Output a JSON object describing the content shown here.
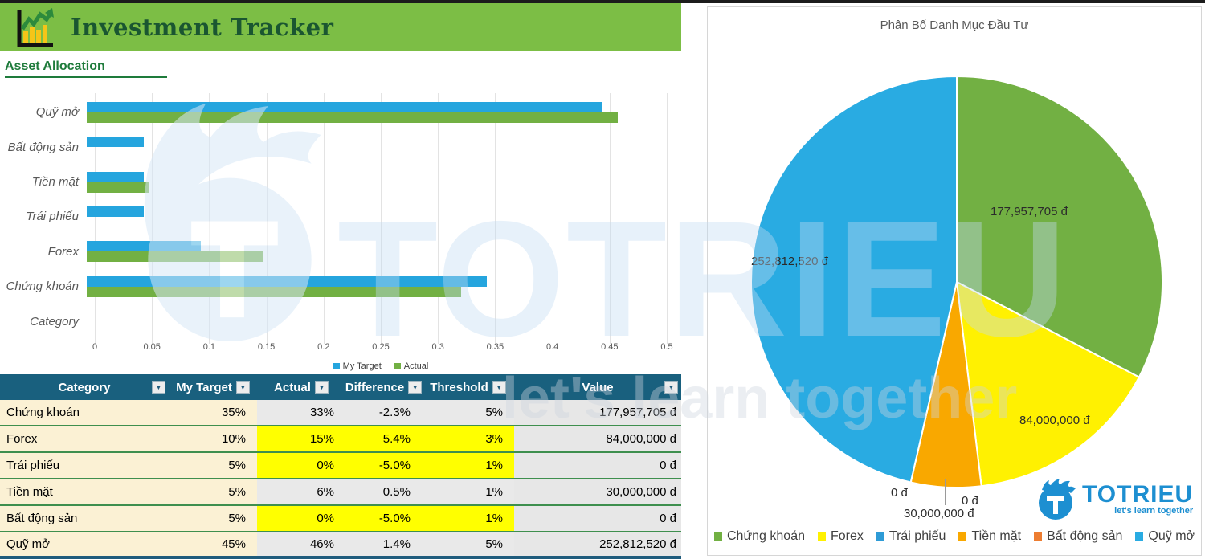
{
  "header": {
    "title": "Investment Tracker"
  },
  "section": {
    "title": "Asset Allocation"
  },
  "colors": {
    "banner_green": "#7CBE45",
    "title_green": "#1A5631",
    "section_green": "#1E7B3B",
    "target_blue": "#25A5DE",
    "actual_green": "#72B043",
    "table_header_bg": "#19607E",
    "row_beige": "#FBF1D4",
    "row_gray": "#E9E9E9",
    "highlight_yellow": "#FFFF00",
    "separator_green": "#3E8F4E",
    "bottom_border_blue": "#1F5C7D",
    "logo_blue": "#1D8FD1"
  },
  "chart_data": [
    {
      "type": "bar",
      "orientation": "horizontal",
      "title": "",
      "categories": [
        "Quỹ mở",
        "Bất động sản",
        "Tiền mặt",
        "Trái phiếu",
        "Forex",
        "Chứng khoán",
        "Category"
      ],
      "series": [
        {
          "name": "My Target",
          "color": "#25A5DE",
          "values": [
            0.45,
            0.05,
            0.05,
            0.05,
            0.1,
            0.35,
            0
          ]
        },
        {
          "name": "Actual",
          "color": "#72B043",
          "values": [
            0.464,
            0,
            0.055,
            0,
            0.154,
            0.327,
            0
          ]
        }
      ],
      "xlim": [
        0,
        0.5
      ],
      "xticks": [
        "0",
        "0.05",
        "0.1",
        "0.15",
        "0.2",
        "0.25",
        "0.3",
        "0.35",
        "0.4",
        "0.45",
        "0.5"
      ],
      "grid": true,
      "legend_position": "bottom"
    },
    {
      "type": "pie",
      "title": "Phân Bố Danh Mục Đầu Tư",
      "labels": [
        "Chứng khoán",
        "Forex",
        "Trái phiếu",
        "Tiền mặt",
        "Bất động sản",
        "Quỹ mở"
      ],
      "values": [
        177957705,
        84000000,
        0,
        30000000,
        0,
        252812520
      ],
      "colors": [
        "#72B043",
        "#FFF101",
        "#2E9BD6",
        "#F9A800",
        "#ED7D31",
        "#29ABE2"
      ],
      "data_labels": [
        "177,957,705 đ",
        "84,000,000 đ",
        "0 đ",
        "30,000,000 đ",
        "0 đ",
        "252,812,520 đ"
      ],
      "legend_position": "bottom"
    }
  ],
  "table": {
    "headers": [
      "Category",
      "My Target",
      "Actual",
      "Difference",
      "Threshold",
      "Value"
    ],
    "rows": [
      {
        "category": "Chứng khoán",
        "target": "35%",
        "actual": "33%",
        "difference": "-2.3%",
        "threshold": "5%",
        "value": "177,957,705 đ",
        "highlight": false
      },
      {
        "category": "Forex",
        "target": "10%",
        "actual": "15%",
        "difference": "5.4%",
        "threshold": "3%",
        "value": "84,000,000 đ",
        "highlight": true
      },
      {
        "category": "Trái phiếu",
        "target": "5%",
        "actual": "0%",
        "difference": "-5.0%",
        "threshold": "1%",
        "value": "0 đ",
        "highlight": true
      },
      {
        "category": "Tiền mặt",
        "target": "5%",
        "actual": "6%",
        "difference": "0.5%",
        "threshold": "1%",
        "value": "30,000,000 đ",
        "highlight": false
      },
      {
        "category": "Bất động sản",
        "target": "5%",
        "actual": "0%",
        "difference": "-5.0%",
        "threshold": "1%",
        "value": "0 đ",
        "highlight": true
      },
      {
        "category": "Quỹ mở",
        "target": "45%",
        "actual": "46%",
        "difference": "1.4%",
        "threshold": "5%",
        "value": "252,812,520 đ",
        "highlight": false
      }
    ]
  },
  "logo": {
    "brand": "TOTRIEU",
    "tagline": "let's learn together"
  },
  "watermark": {
    "brand": "TOTRIEU",
    "tagline": "let's learn together"
  }
}
